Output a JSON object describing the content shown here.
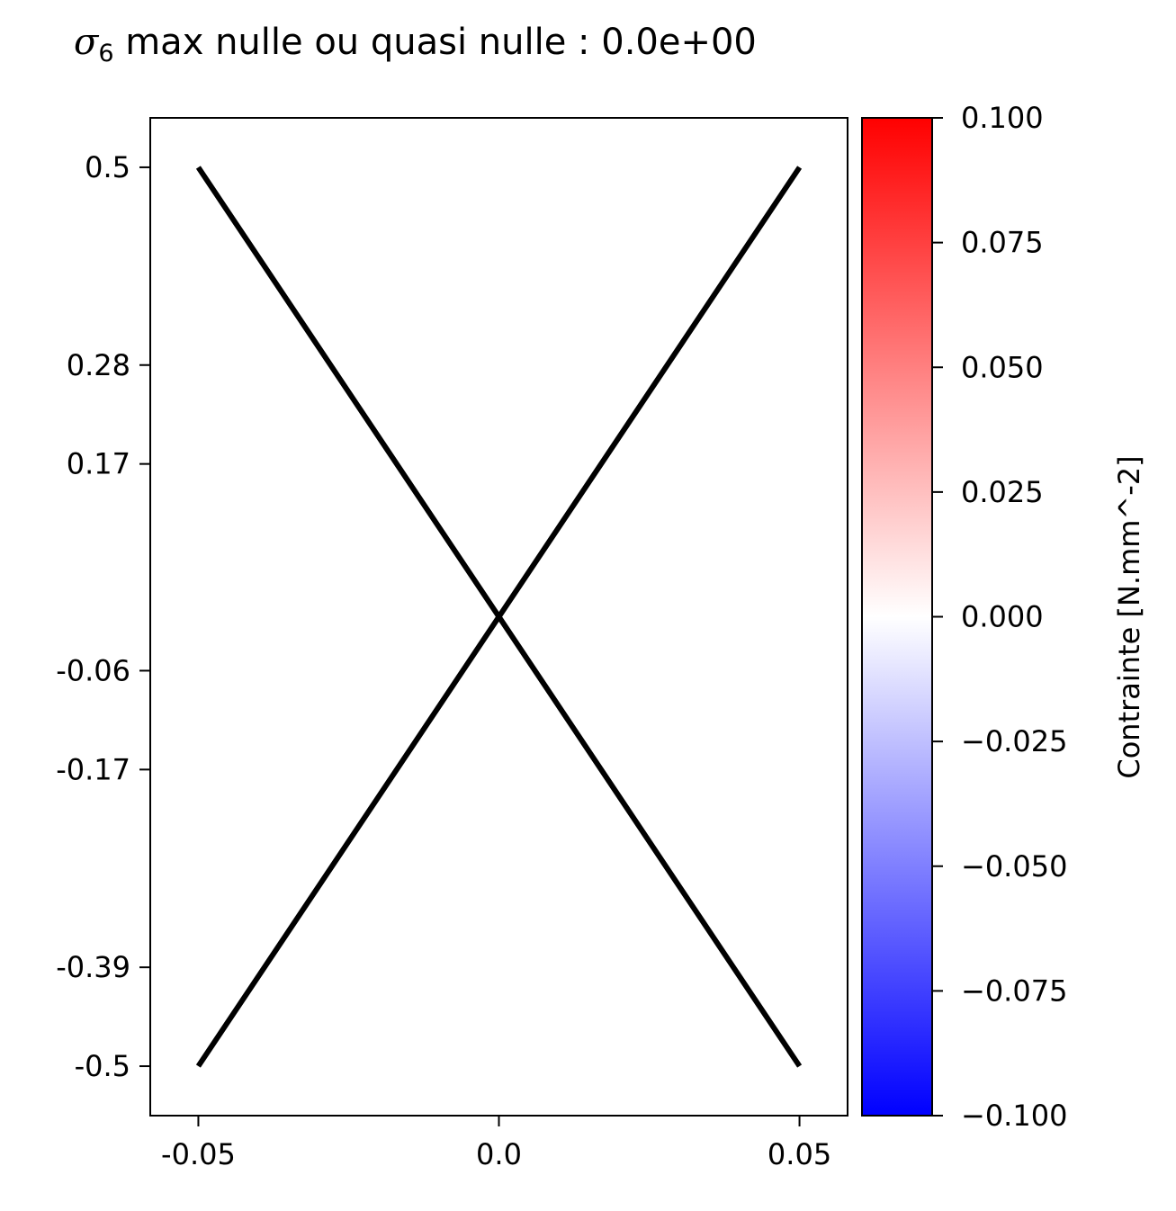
{
  "chart_data": {
    "type": "line",
    "title": {
      "symbol": "σ",
      "subscript": "6",
      "text": " max nulle ou quasi nulle : 0.0e+00"
    },
    "xlabel": "",
    "ylabel": "",
    "xlim": [
      -0.058,
      0.058
    ],
    "ylim": [
      -0.555,
      0.555
    ],
    "x_ticks": [
      {
        "value": -0.05,
        "label": "-0.05"
      },
      {
        "value": 0.0,
        "label": "0.0"
      },
      {
        "value": 0.05,
        "label": "0.05"
      }
    ],
    "y_ticks": [
      {
        "value": 0.5,
        "label": "0.5"
      },
      {
        "value": 0.28,
        "label": "0.28"
      },
      {
        "value": 0.17,
        "label": "0.17"
      },
      {
        "value": -0.06,
        "label": "-0.06"
      },
      {
        "value": -0.17,
        "label": "-0.17"
      },
      {
        "value": -0.39,
        "label": "-0.39"
      },
      {
        "value": -0.5,
        "label": "-0.5"
      }
    ],
    "series": [
      {
        "x": [
          -0.05,
          0.05
        ],
        "y": [
          0.5,
          -0.5
        ],
        "color": "#000000"
      },
      {
        "x": [
          -0.05,
          0.05
        ],
        "y": [
          -0.5,
          0.5
        ],
        "color": "#000000"
      }
    ],
    "grid": false,
    "colorbar": {
      "label": "Contrainte [N.mm^-2]",
      "range": [
        -0.1,
        0.1
      ],
      "colormap": "bwr",
      "colors": [
        "#0000ff",
        "#ffffff",
        "#ff0000"
      ],
      "ticks": [
        {
          "value": 0.1,
          "label": "0.100"
        },
        {
          "value": 0.075,
          "label": "0.075"
        },
        {
          "value": 0.05,
          "label": "0.050"
        },
        {
          "value": 0.025,
          "label": "0.025"
        },
        {
          "value": 0.0,
          "label": "0.000"
        },
        {
          "value": -0.025,
          "label": "−0.025"
        },
        {
          "value": -0.05,
          "label": "−0.050"
        },
        {
          "value": -0.075,
          "label": "−0.075"
        },
        {
          "value": -0.1,
          "label": "−0.100"
        }
      ]
    }
  }
}
